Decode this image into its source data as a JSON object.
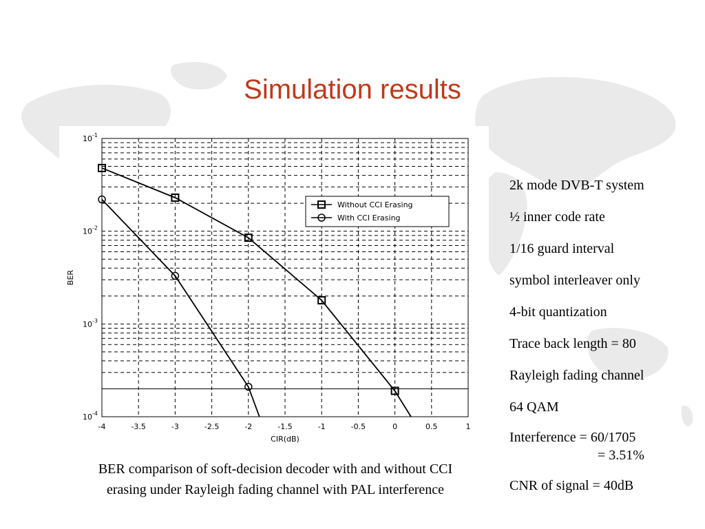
{
  "slide": {
    "title": "Simulation results",
    "caption_lines": [
      "BER comparison of soft-decision decoder with and without CCI",
      "erasing under Rayleigh fading channel with PAL interference"
    ],
    "parameters": [
      "2k mode DVB-T system",
      "½ inner code rate",
      "1/16 guard interval",
      "symbol interleaver only",
      "4-bit quantization",
      "Trace back length = 80",
      "Rayleigh fading channel",
      "64 QAM",
      "Interference = 60/1705",
      "= 3.51%",
      "CNR of signal = 40dB"
    ]
  },
  "chart_data": {
    "type": "line",
    "xlabel": "CIR(dB)",
    "ylabel": "BER",
    "xlim": [
      -4,
      1
    ],
    "ylim": [
      0.0001,
      0.1
    ],
    "yscale": "log",
    "grid": true,
    "legend_position": "top-right",
    "x_ticks": [
      "-4",
      "-3.5",
      "-3",
      "-2.5",
      "-2",
      "-1.5",
      "-1",
      "-0.5",
      "0",
      "0.5",
      "1"
    ],
    "x_tick_values": [
      -4,
      -3.5,
      -3,
      -2.5,
      -2,
      -1.5,
      -1,
      -0.5,
      0,
      0.5,
      1
    ],
    "y_ticks": [
      {
        "base": "10",
        "exp": "-4",
        "value": 0.0001
      },
      {
        "base": "10",
        "exp": "-3",
        "value": 0.001
      },
      {
        "base": "10",
        "exp": "-2",
        "value": 0.01
      },
      {
        "base": "10",
        "exp": "-1",
        "value": 0.1
      }
    ],
    "reference_line_y": 0.0002,
    "series": [
      {
        "name": "Without CCI Erasing",
        "marker": "square",
        "points": [
          [
            -4,
            0.048
          ],
          [
            -3,
            0.023
          ],
          [
            -2,
            0.0085
          ],
          [
            -1,
            0.0018
          ],
          [
            0,
            0.00019
          ],
          [
            0.22,
            0.0001
          ]
        ],
        "marked_count": 5
      },
      {
        "name": "With CCI Erasing",
        "marker": "circle",
        "points": [
          [
            -4,
            0.022
          ],
          [
            -3,
            0.0033
          ],
          [
            -2,
            0.00021
          ],
          [
            -1.85,
            0.0001
          ]
        ],
        "marked_count": 3
      }
    ]
  }
}
